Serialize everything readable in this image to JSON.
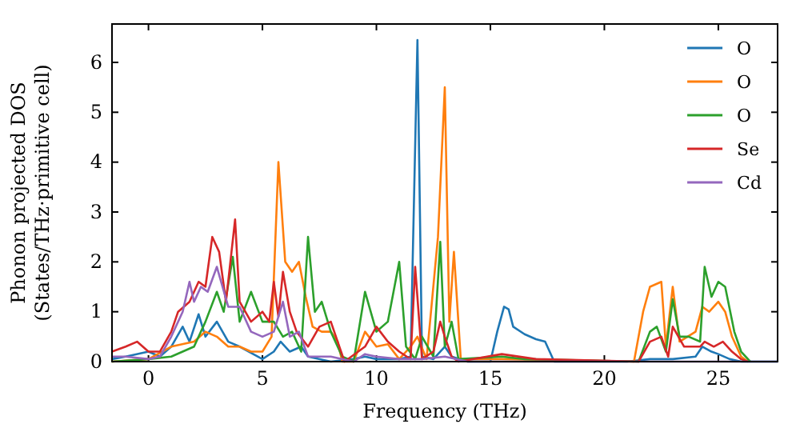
{
  "chart_data": {
    "type": "line",
    "xlabel": "Frequency (THz)",
    "ylabel": "Phonon projected DOS\n(States/THz·primitive cell)",
    "xlim": [
      -1.6,
      27.6
    ],
    "ylim": [
      0,
      6.77
    ],
    "xticks": [
      0,
      5,
      10,
      15,
      20,
      25
    ],
    "yticks": [
      0,
      1,
      2,
      3,
      4,
      5,
      6
    ],
    "grid": false,
    "legend": "top right",
    "marker": "none",
    "line_style": "solid",
    "series": [
      {
        "name": "O",
        "color": "#1f77b4",
        "x": [
          -1.6,
          -1,
          0,
          0.5,
          1,
          1.5,
          1.8,
          2.2,
          2.5,
          3,
          3.5,
          4,
          5,
          5.5,
          5.8,
          6.2,
          6.7,
          7,
          8,
          9,
          9.5,
          10,
          11,
          11.5,
          11.8,
          12,
          12.5,
          13,
          13.3,
          14,
          15,
          15.3,
          15.6,
          15.8,
          16,
          16.5,
          17,
          17.4,
          17.8,
          21,
          22,
          23,
          24,
          24.3,
          24.7,
          25,
          25.5,
          26,
          27.6
        ],
        "values": [
          0.05,
          0.1,
          0.2,
          0.1,
          0.3,
          0.7,
          0.4,
          0.95,
          0.5,
          0.8,
          0.4,
          0.3,
          0.05,
          0.2,
          0.4,
          0.2,
          0.3,
          0.1,
          0,
          0.05,
          0.1,
          0.05,
          0.05,
          0.1,
          6.45,
          0.1,
          0.05,
          0.3,
          0.1,
          0,
          0,
          0.6,
          1.1,
          1.05,
          0.7,
          0.55,
          0.45,
          0.4,
          0,
          0,
          0.05,
          0.05,
          0.1,
          0.3,
          0.2,
          0.15,
          0.05,
          0,
          0
        ]
      },
      {
        "name": "O",
        "color": "#ff7f0e",
        "x": [
          -1.6,
          0,
          1,
          2,
          2.5,
          3,
          3.5,
          4,
          4.5,
          5,
          5.4,
          5.7,
          6,
          6.3,
          6.6,
          6.9,
          7.2,
          7.6,
          8,
          8.3,
          8.5,
          9,
          9.5,
          10,
          10.5,
          11,
          11.5,
          11.8,
          12.2,
          12.7,
          13,
          13.2,
          13.4,
          13.7,
          15.5,
          21.3,
          21.7,
          22,
          22.5,
          22.7,
          23,
          23.3,
          24,
          24.3,
          24.6,
          25,
          25.3,
          25.6,
          26,
          26.3
        ],
        "values": [
          0,
          0.05,
          0.3,
          0.4,
          0.6,
          0.5,
          0.3,
          0.3,
          0.2,
          0.2,
          0.5,
          4.0,
          2.0,
          1.8,
          2.0,
          1.3,
          0.7,
          0.6,
          0.6,
          0.4,
          0,
          0,
          0.6,
          0.3,
          0.35,
          0.05,
          0.3,
          0.5,
          0.05,
          2.5,
          5.5,
          0.8,
          2.2,
          0.05,
          0.05,
          0,
          1.0,
          1.5,
          1.6,
          0.3,
          1.5,
          0.4,
          0.6,
          1.1,
          1.0,
          1.2,
          1.0,
          0.5,
          0.1,
          0
        ]
      },
      {
        "name": "O",
        "color": "#2ca02c",
        "x": [
          -1.6,
          0,
          1,
          2,
          2.5,
          3,
          3.3,
          3.7,
          4,
          4.5,
          5,
          5.5,
          5.9,
          6.3,
          6.7,
          7,
          7.3,
          7.6,
          8,
          8.5,
          9,
          9.5,
          10,
          10.5,
          11,
          11.3,
          11.7,
          12,
          12.5,
          12.8,
          13,
          13.3,
          13.6,
          15.5,
          16.5,
          21.5,
          22,
          22.3,
          22.7,
          23,
          23.3,
          23.7,
          24.2,
          24.4,
          24.7,
          25,
          25.3,
          25.7,
          26,
          26.4
        ],
        "values": [
          0,
          0.05,
          0.1,
          0.3,
          0.8,
          1.4,
          1.0,
          2.1,
          0.8,
          1.4,
          0.8,
          0.8,
          0.5,
          0.6,
          0.2,
          2.5,
          1.0,
          1.2,
          0.6,
          0.1,
          0,
          1.4,
          0.6,
          0.8,
          2.0,
          0.3,
          0.05,
          0.5,
          0.1,
          2.4,
          0.3,
          0.8,
          0.05,
          0.1,
          0.05,
          0,
          0.6,
          0.7,
          0.2,
          1.25,
          0.5,
          0.5,
          0.4,
          1.9,
          1.3,
          1.6,
          1.5,
          0.6,
          0.2,
          0
        ]
      },
      {
        "name": "Se",
        "color": "#d62728",
        "x": [
          -1.6,
          -1,
          -0.5,
          0,
          0.5,
          1,
          1.3,
          1.8,
          2.2,
          2.5,
          2.8,
          3.1,
          3.4,
          3.8,
          4,
          4.5,
          5,
          5.3,
          5.5,
          5.7,
          5.9,
          6.2,
          6.5,
          7,
          7.5,
          8,
          8.3,
          8.6,
          9.5,
          10,
          10.5,
          11,
          11.5,
          11.7,
          12,
          12.5,
          12.8,
          13,
          13.3,
          13.6,
          15.5,
          17,
          21.5,
          22,
          22.5,
          22.8,
          23,
          23.5,
          24.2,
          24.4,
          24.8,
          25.2,
          25.6,
          26,
          26.3
        ],
        "values": [
          0.2,
          0.3,
          0.4,
          0.2,
          0.2,
          0.6,
          1.0,
          1.2,
          1.6,
          1.5,
          2.5,
          2.2,
          1.2,
          2.85,
          1.2,
          0.8,
          1.0,
          0.8,
          1.6,
          0.9,
          1.8,
          1.0,
          0.6,
          0.3,
          0.7,
          0.8,
          0.4,
          0,
          0.3,
          0.7,
          0.4,
          0.2,
          0.05,
          1.9,
          0.05,
          0.2,
          0.8,
          0.5,
          0.1,
          0,
          0.15,
          0.05,
          0,
          0.4,
          0.5,
          0.1,
          0.7,
          0.3,
          0.3,
          0.4,
          0.3,
          0.4,
          0.2,
          0.05,
          0
        ]
      },
      {
        "name": "Cd",
        "color": "#9467bd",
        "x": [
          -1.6,
          -1,
          0,
          0.5,
          1,
          1.5,
          1.8,
          2,
          2.3,
          2.6,
          3,
          3.5,
          4,
          4.5,
          5,
          5.5,
          5.9,
          6.2,
          6.6,
          7,
          8,
          9,
          9.5,
          10,
          11,
          12,
          13,
          14,
          27.6
        ],
        "values": [
          0.1,
          0.1,
          0.05,
          0.1,
          0.5,
          1.0,
          1.6,
          1.2,
          1.5,
          1.4,
          1.9,
          1.1,
          1.1,
          0.6,
          0.5,
          0.6,
          1.2,
          0.5,
          0.6,
          0.1,
          0.1,
          0,
          0.15,
          0.1,
          0.05,
          0.05,
          0.1,
          0,
          0
        ]
      }
    ]
  }
}
